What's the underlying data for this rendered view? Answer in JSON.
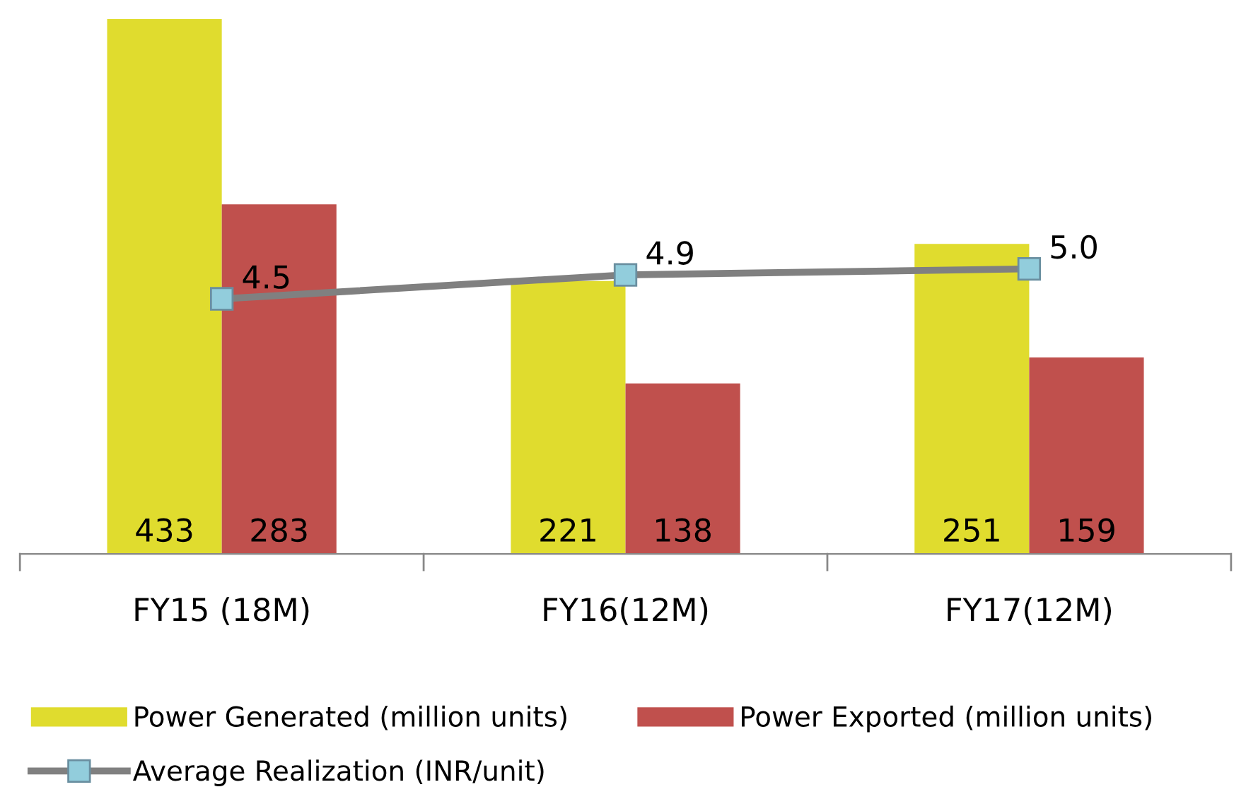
{
  "chart_data": {
    "type": "bar",
    "categories": [
      "FY15 (18M)",
      "FY16(12M)",
      "FY17(12M)"
    ],
    "series": [
      {
        "name": "Power Generated (million units)",
        "color": "#e0dc2e",
        "values": [
          433,
          221,
          251
        ]
      },
      {
        "name": "Power Exported (million units)",
        "color": "#c0504d",
        "values": [
          283,
          138,
          159
        ]
      },
      {
        "name": "Average Realization (INR/unit)",
        "type": "line",
        "axis": "y2",
        "color": "#808080",
        "values": [
          4.5,
          4.9,
          5.0
        ],
        "value_labels": [
          "4.5",
          "4.9",
          "5.0"
        ]
      }
    ],
    "data_labels": true,
    "tick_labels": "x",
    "grid": false,
    "legend": "bottom",
    "marker": "square",
    "line_style": "solid"
  }
}
